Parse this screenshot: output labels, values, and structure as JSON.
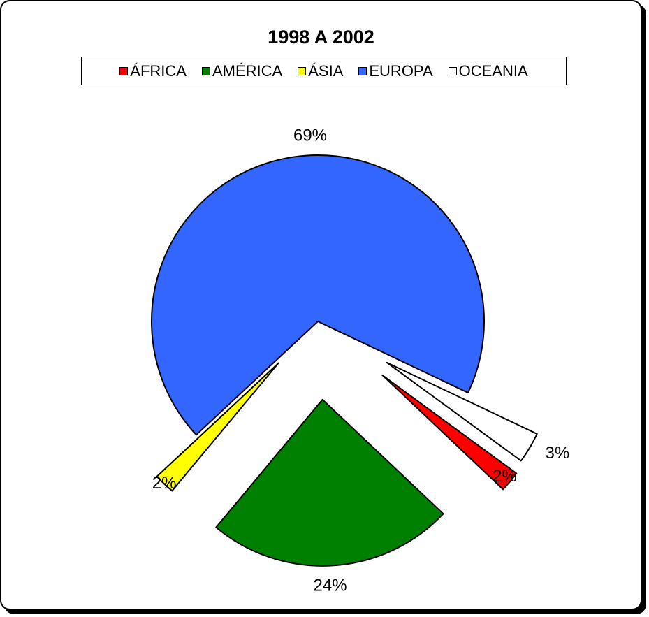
{
  "chart_data": {
    "type": "pie",
    "title": "1998 A 2002",
    "legend_position": "top",
    "slices": [
      {
        "label": "ÁFRICA",
        "value": 2,
        "display": "2%",
        "color": "#ff0000"
      },
      {
        "label": "AMÉRICA",
        "value": 24,
        "display": "24%",
        "color": "#008000"
      },
      {
        "label": "ÁSIA",
        "value": 2,
        "display": "2%",
        "color": "#ffff00"
      },
      {
        "label": "EUROPA",
        "value": 69,
        "display": "69%",
        "color": "#3366ff"
      },
      {
        "label": "OCEANIA",
        "value": 3,
        "display": "3%",
        "color": "#ffffff"
      }
    ]
  }
}
